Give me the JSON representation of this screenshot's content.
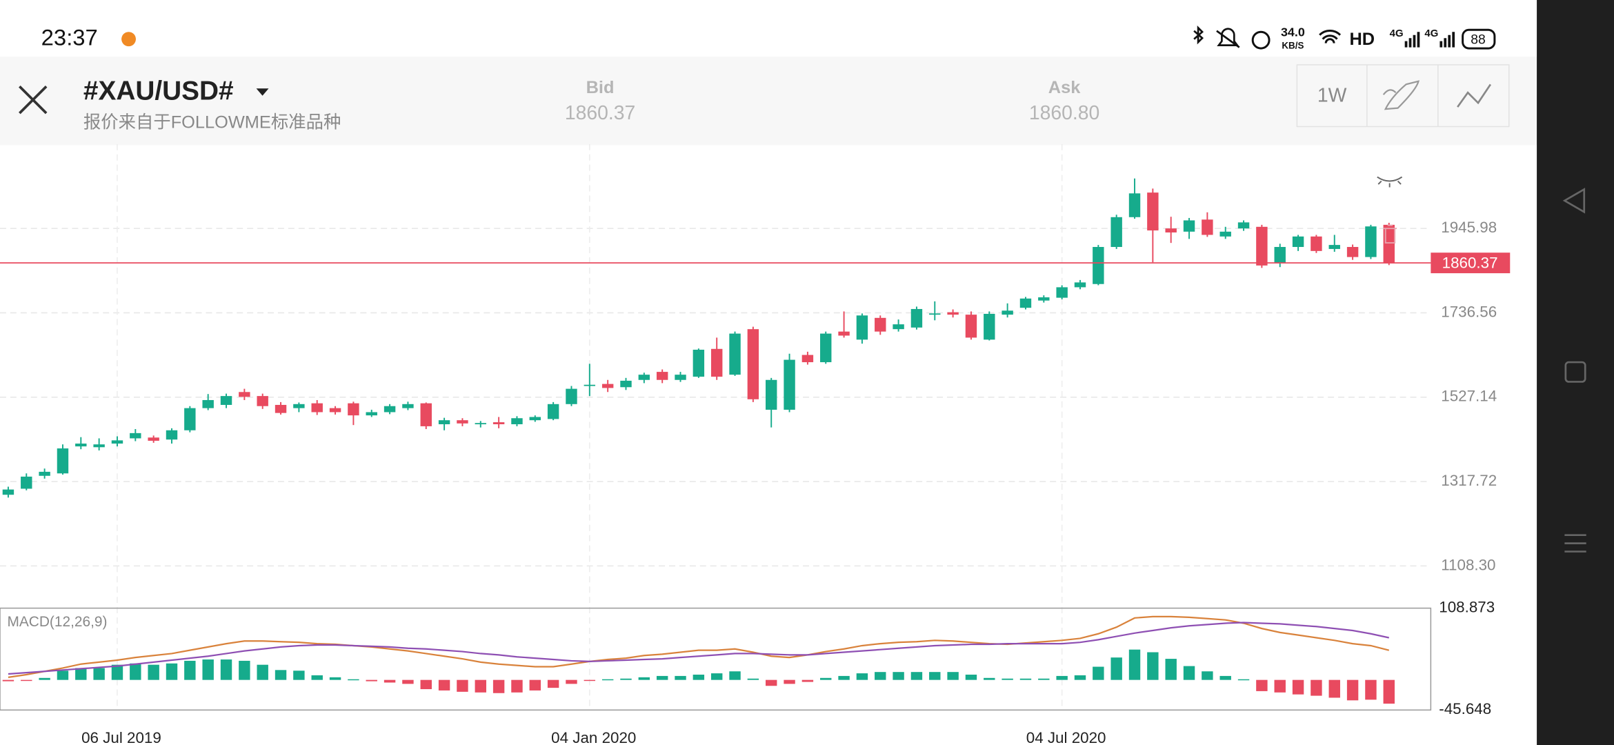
{
  "status_bar": {
    "time": "23:37",
    "net_speed": "34.0",
    "net_unit": "KB/S",
    "hd": "HD",
    "signal_1": "4G",
    "signal_2": "4G",
    "battery": "88"
  },
  "header": {
    "symbol": "#XAU/USD#",
    "source": "报价来自于FOLLOWME标准品种",
    "bid_label": "Bid",
    "bid": "1860.37",
    "ask_label": "Ask",
    "ask": "1860.80",
    "timeframe": "1W"
  },
  "chart_data": [
    {
      "type": "candlestick",
      "categories": [
        null,
        null,
        null,
        null,
        null,
        null,
        "06 Jul 2019",
        null,
        null,
        null,
        null,
        null,
        null,
        null,
        null,
        null,
        null,
        null,
        null,
        null,
        null,
        null,
        null,
        null,
        null,
        null,
        null,
        null,
        null,
        null,
        null,
        null,
        "04 Jan 2020",
        null,
        null,
        null,
        null,
        null,
        null,
        null,
        null,
        null,
        null,
        null,
        null,
        null,
        null,
        null,
        null,
        null,
        null,
        null,
        null,
        null,
        null,
        null,
        null,
        null,
        "04 Jul 2020",
        null,
        null,
        null,
        null,
        null,
        null,
        null,
        null,
        null,
        null,
        null,
        null,
        null,
        null,
        null,
        null,
        null,
        null
      ],
      "open": [
        1285,
        1300,
        1332,
        1338,
        1405,
        1403,
        1412,
        1425,
        1427,
        1422,
        1445,
        1500,
        1508,
        1540,
        1530,
        1508,
        1500,
        1512,
        1500,
        1512,
        1482,
        1490,
        1500,
        1512,
        1460,
        1470,
        1460,
        1465,
        1460,
        1470,
        1473,
        1510,
        1555,
        1560,
        1552,
        1570,
        1590,
        1570,
        1578,
        1647,
        1583,
        1696,
        1496,
        1496,
        1632,
        1614,
        1690,
        1670,
        1724,
        1696,
        1700,
        1732,
        1738,
        1732,
        1670,
        1732,
        1749,
        1767,
        1774,
        1800,
        1808,
        1900,
        1974,
        2035,
        1946,
        1938,
        1968,
        1926,
        1946,
        1950,
        1860,
        1900,
        1926,
        1895,
        1900,
        1875,
        1955
      ],
      "high": [
        1305,
        1338,
        1350,
        1410,
        1428,
        1425,
        1430,
        1448,
        1432,
        1450,
        1505,
        1535,
        1536,
        1548,
        1536,
        1515,
        1514,
        1520,
        1505,
        1516,
        1496,
        1510,
        1516,
        1514,
        1476,
        1475,
        1468,
        1478,
        1480,
        1482,
        1515,
        1555,
        1610,
        1570,
        1575,
        1588,
        1596,
        1590,
        1648,
        1675,
        1690,
        1702,
        1575,
        1635,
        1640,
        1690,
        1740,
        1735,
        1730,
        1720,
        1752,
        1765,
        1745,
        1740,
        1740,
        1760,
        1776,
        1780,
        1805,
        1818,
        1905,
        1980,
        2070,
        2045,
        1975,
        1972,
        1986,
        1950,
        1966,
        1955,
        1908,
        1930,
        1930,
        1930,
        1906,
        1955,
        1960
      ],
      "low": [
        1278,
        1296,
        1325,
        1335,
        1398,
        1395,
        1405,
        1418,
        1414,
        1412,
        1440,
        1495,
        1500,
        1520,
        1498,
        1484,
        1490,
        1483,
        1484,
        1458,
        1478,
        1485,
        1495,
        1448,
        1445,
        1455,
        1452,
        1450,
        1455,
        1466,
        1470,
        1505,
        1530,
        1540,
        1545,
        1562,
        1562,
        1565,
        1575,
        1570,
        1580,
        1515,
        1452,
        1490,
        1608,
        1610,
        1675,
        1660,
        1682,
        1690,
        1695,
        1718,
        1725,
        1670,
        1668,
        1725,
        1745,
        1762,
        1770,
        1795,
        1805,
        1895,
        1970,
        1862,
        1910,
        1920,
        1925,
        1920,
        1940,
        1848,
        1850,
        1890,
        1885,
        1888,
        1868,
        1870,
        1855
      ],
      "close": [
        1298,
        1330,
        1342,
        1400,
        1412,
        1410,
        1420,
        1438,
        1419,
        1445,
        1500,
        1520,
        1530,
        1528,
        1505,
        1488,
        1510,
        1490,
        1490,
        1482,
        1490,
        1505,
        1510,
        1455,
        1470,
        1462,
        1463,
        1460,
        1475,
        1478,
        1510,
        1548,
        1558,
        1550,
        1568,
        1583,
        1570,
        1583,
        1645,
        1578,
        1685,
        1522,
        1570,
        1620,
        1614,
        1685,
        1680,
        1730,
        1690,
        1708,
        1746,
        1735,
        1732,
        1675,
        1734,
        1742,
        1772,
        1775,
        1800,
        1812,
        1900,
        1974,
        2033,
        1941,
        1936,
        1966,
        1930,
        1938,
        1961,
        1854,
        1900,
        1926,
        1890,
        1905,
        1875,
        1951,
        1860.37
      ],
      "up_color": "#16ab8c",
      "down_color": "#e84a5f",
      "current_price": {
        "value": 1860.37,
        "label": "1860.37"
      },
      "current_price_color": "#e84a5f",
      "ylim": [
        1057.2,
        2155.4
      ],
      "yticks": [
        {
          "value": 1108.3,
          "label": "1108.30"
        },
        1317.72,
        1527.14,
        1736.56,
        1945.98
      ],
      "grid": true
    },
    {
      "type": "macd",
      "title": "MACD(12,26,9)",
      "histogram": {
        "values": [
          -2,
          -1,
          3,
          14,
          18,
          18,
          23,
          25,
          23,
          25,
          29,
          31,
          31,
          29,
          23,
          15,
          14,
          7,
          4,
          1,
          -2,
          -4,
          -6,
          -14,
          -16,
          -18,
          -19,
          -20,
          -19,
          -16,
          -12,
          -6,
          -1,
          1,
          2,
          4,
          6,
          6,
          8,
          10,
          13,
          2,
          -9,
          -6,
          -3,
          3,
          6,
          10,
          12,
          12,
          12,
          12,
          12,
          8,
          3,
          2,
          2,
          2,
          6,
          7,
          20,
          34,
          46,
          42,
          32,
          21,
          13,
          6,
          1,
          -17,
          -19,
          -22,
          -24,
          -27,
          -31,
          -30,
          -36
        ],
        "up_color": "#16ab8c",
        "down_color": "#e84a5f"
      },
      "series": [
        {
          "color": "#d9823b",
          "values": [
            4,
            8,
            13,
            18,
            24,
            27,
            30,
            34,
            37,
            40,
            45,
            50,
            55,
            59,
            59,
            58,
            57,
            55,
            54,
            52,
            50,
            47,
            44,
            40,
            36,
            32,
            27,
            24,
            22,
            20,
            20,
            24,
            28,
            31,
            33,
            37,
            39,
            42,
            45,
            45,
            47,
            42,
            36,
            34,
            38,
            43,
            47,
            52,
            55,
            57,
            58,
            60,
            59,
            57,
            55,
            54,
            56,
            58,
            60,
            63,
            70,
            80,
            94,
            96,
            96,
            95,
            93,
            91,
            86,
            78,
            72,
            68,
            64,
            60,
            55,
            52,
            45
          ]
        },
        {
          "color": "#8e4fb3",
          "values": [
            9,
            11,
            13,
            15,
            17,
            19,
            21,
            24,
            27,
            30,
            33,
            36,
            40,
            44,
            47,
            50,
            52,
            53,
            53,
            52,
            51,
            50,
            48,
            47,
            45,
            43,
            40,
            38,
            35,
            33,
            31,
            29,
            28,
            29,
            30,
            31,
            32,
            34,
            36,
            38,
            40,
            40,
            39,
            38,
            38,
            40,
            42,
            44,
            46,
            48,
            50,
            52,
            53,
            54,
            54,
            55,
            55,
            55,
            55,
            57,
            61,
            66,
            71,
            75,
            79,
            82,
            84,
            86,
            87,
            86,
            85,
            83,
            81,
            78,
            75,
            70,
            64
          ]
        }
      ],
      "ylim": [
        -45.648,
        108.873
      ],
      "yticks": [
        108.873,
        -45.648
      ]
    }
  ]
}
